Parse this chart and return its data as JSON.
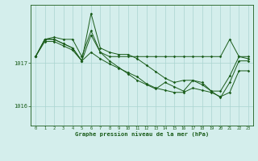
{
  "xlabel": "Graphe pression niveau de la mer (hPa)",
  "background_color": "#d4eeec",
  "grid_color": "#aad4d0",
  "line_color": "#1a5c1a",
  "xlim": [
    -0.5,
    23.5
  ],
  "ylim": [
    1015.55,
    1018.35
  ],
  "yticks": [
    1016,
    1017
  ],
  "hours": [
    0,
    1,
    2,
    3,
    4,
    5,
    6,
    7,
    8,
    9,
    10,
    11,
    12,
    13,
    14,
    15,
    16,
    17,
    18,
    19,
    20,
    21,
    22,
    23
  ],
  "line1": [
    1017.15,
    1017.55,
    1017.6,
    1017.55,
    1017.55,
    1017.15,
    1017.75,
    1017.25,
    1017.15,
    1017.15,
    1017.15,
    1017.15,
    1017.15,
    1017.15,
    1017.15,
    1017.15,
    1017.15,
    1017.15,
    1017.15,
    1017.15,
    1017.15,
    1017.55,
    1017.15,
    1017.15
  ],
  "line2": [
    1017.15,
    1017.55,
    1017.55,
    1017.45,
    1017.35,
    1017.05,
    1018.15,
    1017.35,
    1017.25,
    1017.2,
    1017.2,
    1017.1,
    1016.95,
    1016.8,
    1016.65,
    1016.55,
    1016.6,
    1016.6,
    1016.5,
    1016.35,
    1016.35,
    1016.7,
    1017.15,
    1017.1
  ],
  "line3": [
    1017.15,
    1017.55,
    1017.55,
    1017.45,
    1017.35,
    1017.05,
    1017.65,
    1017.25,
    1017.05,
    1016.9,
    1016.75,
    1016.6,
    1016.5,
    1016.4,
    1016.55,
    1016.45,
    1016.35,
    1016.6,
    1016.55,
    1016.35,
    1016.2,
    1016.55,
    1017.05,
    1017.05
  ],
  "line4": [
    1017.15,
    1017.5,
    1017.5,
    1017.4,
    1017.3,
    1017.05,
    1017.25,
    1017.1,
    1016.98,
    1016.88,
    1016.78,
    1016.68,
    1016.52,
    1016.42,
    1016.37,
    1016.32,
    1016.32,
    1016.42,
    1016.37,
    1016.32,
    1016.22,
    1016.32,
    1016.82,
    1016.82
  ]
}
